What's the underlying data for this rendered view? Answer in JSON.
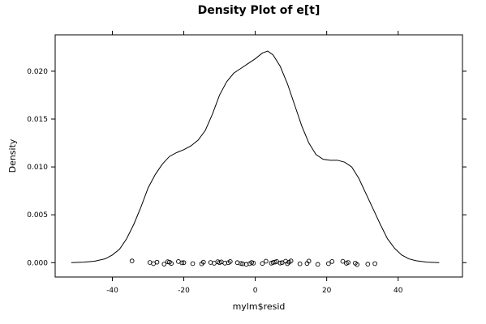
{
  "chart_data": {
    "type": "line",
    "title": "Density Plot of e[t]",
    "xlabel": "mylm$resid",
    "ylabel": "Density",
    "xlim": [
      -56,
      58
    ],
    "ylim": [
      -0.0015,
      0.0238
    ],
    "x_ticks": [
      -40,
      -20,
      0,
      20,
      40
    ],
    "x_tick_labels": [
      "-40",
      "-20",
      "0",
      "20",
      "40"
    ],
    "y_ticks": [
      0.0,
      0.005,
      0.01,
      0.015,
      0.02
    ],
    "y_tick_labels": [
      "0.000",
      "0.005",
      "0.010",
      "0.015",
      "0.020"
    ],
    "grid": false,
    "series": [
      {
        "kind": "density-curve",
        "color": "#000000",
        "x": [
          -51.5,
          -48,
          -45,
          -42,
          -40,
          -38,
          -36,
          -34,
          -32,
          -30,
          -28,
          -26,
          -24,
          -22,
          -20,
          -18,
          -16,
          -14,
          -12,
          -10,
          -8,
          -6,
          -4,
          -2,
          0,
          2,
          3.5,
          5,
          7,
          9,
          11,
          13,
          15,
          17,
          19,
          21,
          23,
          25,
          27,
          29,
          31,
          33,
          35,
          37,
          39,
          41,
          43,
          45,
          48,
          51.5
        ],
        "y": [
          0.0,
          5e-05,
          0.00015,
          0.0004,
          0.0008,
          0.0014,
          0.0025,
          0.004,
          0.0058,
          0.0078,
          0.0092,
          0.0103,
          0.0111,
          0.0115,
          0.0118,
          0.0122,
          0.0128,
          0.0138,
          0.0155,
          0.0175,
          0.0189,
          0.0198,
          0.0203,
          0.0208,
          0.0213,
          0.0219,
          0.0221,
          0.0217,
          0.0205,
          0.0187,
          0.0165,
          0.0143,
          0.0125,
          0.0113,
          0.0108,
          0.0107,
          0.0107,
          0.0105,
          0.01,
          0.0088,
          0.0072,
          0.0056,
          0.004,
          0.0025,
          0.0015,
          0.0008,
          0.0004,
          0.0002,
          5e-05,
          0.0
        ]
      },
      {
        "kind": "rug-points",
        "marker": "open-circle",
        "color": "#000000",
        "x": [
          -34.5,
          -29.5,
          -28.5,
          -27.5,
          -25.5,
          -24.5,
          -24,
          -23.5,
          -21.5,
          -20.5,
          -20,
          -17.5,
          -15,
          -14.5,
          -12.5,
          -11.5,
          -10.5,
          -10,
          -9.5,
          -8.5,
          -7.5,
          -7,
          -5,
          -4,
          -3.5,
          -2.5,
          -1.5,
          -1,
          -0.5,
          2,
          3,
          4.5,
          5,
          5.5,
          6,
          7,
          7.5,
          8.5,
          9,
          9.5,
          10,
          12.5,
          14.5,
          15,
          17.5,
          20.5,
          21.5,
          24.5,
          25.5,
          26,
          28,
          28.5,
          31.5,
          33.5
        ],
        "y": [
          0.00018,
          2e-05,
          -0.0001,
          5e-05,
          -0.00015,
          0.0001,
          5e-05,
          -8e-05,
          0.00012,
          -2e-05,
          0.0,
          -0.0001,
          -0.00012,
          5e-05,
          2e-05,
          -6e-05,
          0.0001,
          0.0,
          8e-05,
          -5e-05,
          0.0,
          0.00012,
          0.0,
          -8e-05,
          -0.00012,
          -0.00018,
          -0.0001,
          2e-05,
          -5e-05,
          -8e-05,
          0.00015,
          -5e-05,
          2e-05,
          6e-05,
          0.00012,
          -4e-05,
          0.0,
          0.00015,
          -0.0001,
          5e-05,
          0.00018,
          -0.00012,
          -8e-05,
          0.00016,
          -0.00018,
          -0.0001,
          0.00012,
          0.00014,
          -6e-05,
          2e-05,
          -5e-05,
          -0.0002,
          -0.00016,
          -0.0001
        ]
      }
    ]
  }
}
